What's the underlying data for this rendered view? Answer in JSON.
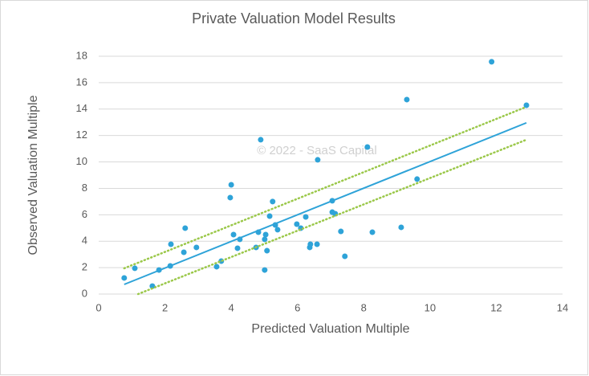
{
  "chart_data": {
    "type": "scatter",
    "title": "Private Valuation Model Results",
    "x_label": "Predicted Valuation Multiple",
    "y_label": "Observed Valuation Multiple",
    "annotation": "© 2022 - SaaS Capital",
    "xlim": [
      0,
      14
    ],
    "xticks": [
      0,
      2,
      4,
      6,
      8,
      10,
      12,
      14
    ],
    "ylim": [
      0,
      18
    ],
    "yticks": [
      0,
      2,
      4,
      6,
      8,
      10,
      12,
      14,
      16,
      18
    ],
    "grid": true,
    "series": [
      {
        "type": "scatter",
        "color": "#2ea3d8",
        "x": [
          0.77,
          1.09,
          1.62,
          1.82,
          2.18,
          2.16,
          2.57,
          2.61,
          2.95,
          3.56,
          3.7,
          4.0,
          3.97,
          4.07,
          4.19,
          4.26,
          4.75,
          4.82,
          4.89,
          5.01,
          5.04,
          5.01,
          5.08,
          5.16,
          5.25,
          5.33,
          5.4,
          5.98,
          6.1,
          6.25,
          6.37,
          6.39,
          6.59,
          6.61,
          7.05,
          7.05,
          7.14,
          7.31,
          7.43,
          8.11,
          8.26,
          9.13,
          9.3,
          9.61,
          11.86,
          12.91
        ],
        "values": [
          1.22,
          1.95,
          0.6,
          1.82,
          3.77,
          2.13,
          3.16,
          4.99,
          3.53,
          2.07,
          2.49,
          8.27,
          7.3,
          4.5,
          3.47,
          4.14,
          3.53,
          4.68,
          11.68,
          4.14,
          4.5,
          1.82,
          3.28,
          5.9,
          7.0,
          5.23,
          4.87,
          5.29,
          4.99,
          5.84,
          3.53,
          3.77,
          3.77,
          10.16,
          7.06,
          6.2,
          6.08,
          4.74,
          2.86,
          11.13,
          4.68,
          5.05,
          14.72,
          8.7,
          17.58,
          14.29
        ]
      },
      {
        "type": "line",
        "color": "#2ea3d8",
        "dash": "solid",
        "x": [
          0.77,
          12.91
        ],
        "values": [
          0.73,
          12.96
        ]
      },
      {
        "type": "line",
        "color": "#9bc84a",
        "dash": "dotted",
        "x": [
          0.77,
          12.91
        ],
        "values": [
          1.95,
          14.17
        ]
      },
      {
        "type": "line",
        "color": "#9bc84a",
        "dash": "dotted",
        "x": [
          1.19,
          12.91
        ],
        "values": [
          0,
          11.68
        ]
      }
    ]
  }
}
